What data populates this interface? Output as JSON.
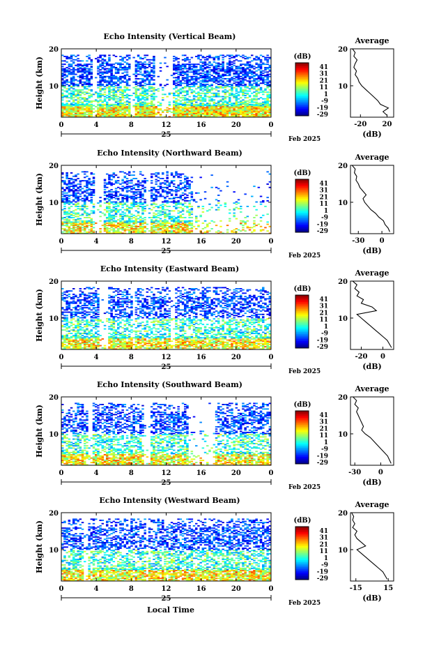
{
  "figure": {
    "xlabel_bottom": "Local Time",
    "date_label": "Feb 2025",
    "day_label": "25"
  },
  "chart_data": [
    {
      "type": "heatmap",
      "title": "Echo Intensity (Vertical Beam)",
      "xlabel": "Local Time",
      "ylabel": "Height (km)",
      "xticks": [
        "0",
        "4",
        "8",
        "12",
        "16",
        "20",
        "0"
      ],
      "xlim": [
        0,
        24
      ],
      "yticks": [
        "20",
        "10"
      ],
      "ylim": [
        1.5,
        20
      ],
      "colorbar": {
        "label": "(dB)",
        "ticks": [
          "41",
          "31",
          "21",
          "11",
          "1",
          "-9",
          "-19",
          "-29"
        ],
        "range": [
          -29,
          46
        ]
      },
      "gaps": [
        [
          3.6,
          4.1
        ],
        [
          8.0,
          8.4
        ],
        [
          10.6,
          12.8
        ]
      ],
      "avg_title": "Average",
      "avg_xlabel": "(dB)",
      "avg_xticks": [
        "-20",
        "20"
      ],
      "avg_xlim": [
        -35,
        30
      ],
      "avg_profile": {
        "height": [
          2,
          3,
          4,
          5,
          6,
          7,
          8,
          9,
          10,
          11,
          12,
          13,
          14,
          15,
          16,
          17,
          18,
          19,
          20
        ],
        "value": [
          20,
          14,
          22,
          10,
          6,
          0,
          -6,
          -12,
          -18,
          -22,
          -24,
          -28,
          -26,
          -30,
          -28,
          -25,
          -30,
          -28,
          -32
        ]
      }
    },
    {
      "type": "heatmap",
      "title": "Echo Intensity (Northward Beam)",
      "xlabel": "Local Time",
      "ylabel": "Height (km)",
      "xticks": [
        "0",
        "4",
        "8",
        "12",
        "16",
        "20",
        "0"
      ],
      "xlim": [
        0,
        24
      ],
      "yticks": [
        "20",
        "10"
      ],
      "ylim": [
        1.5,
        20
      ],
      "colorbar": {
        "label": "(dB)",
        "ticks": [
          "41",
          "31",
          "21",
          "11",
          "1",
          "-9",
          "-19",
          "-29"
        ],
        "range": [
          -29,
          46
        ]
      },
      "gaps": [
        [
          3.8,
          4.8
        ],
        [
          9.8,
          10.2
        ],
        [
          15.0,
          24.0
        ]
      ],
      "avg_title": "Average",
      "avg_xlabel": "(dB)",
      "avg_xticks": [
        "-30",
        "0"
      ],
      "avg_xlim": [
        -40,
        15
      ],
      "avg_profile": {
        "height": [
          2,
          3,
          4,
          5,
          6,
          7,
          8,
          9,
          10,
          11,
          12,
          13,
          14,
          15,
          16,
          17,
          18,
          19,
          20
        ],
        "value": [
          10,
          8,
          4,
          2,
          -4,
          -8,
          -14,
          -18,
          -22,
          -24,
          -20,
          -24,
          -28,
          -30,
          -33,
          -32,
          -35,
          -34,
          -38
        ]
      }
    },
    {
      "type": "heatmap",
      "title": "Echo Intensity (Eastward Beam)",
      "xlabel": "Local Time",
      "ylabel": "Height (km)",
      "xticks": [
        "0",
        "4",
        "8",
        "12",
        "16",
        "20",
        "0"
      ],
      "xlim": [
        0,
        24
      ],
      "yticks": [
        "20",
        "10"
      ],
      "ylim": [
        1.5,
        20
      ],
      "colorbar": {
        "label": "(dB)",
        "ticks": [
          "41",
          "31",
          "21",
          "11",
          "1",
          "-9",
          "-19",
          "-29"
        ],
        "range": [
          -29,
          46
        ]
      },
      "gaps": [
        [
          4.4,
          5.4
        ],
        [
          8.2,
          8.5
        ],
        [
          12.6,
          13.0
        ]
      ],
      "avg_title": "Average",
      "avg_xlabel": "(dB)",
      "avg_xticks": [
        "-20",
        "0"
      ],
      "avg_xlim": [
        -30,
        10
      ],
      "avg_profile": {
        "height": [
          2,
          3,
          4,
          5,
          6,
          7,
          8,
          9,
          10,
          11,
          12,
          13,
          14,
          15,
          16,
          17,
          18,
          19,
          20
        ],
        "value": [
          8,
          6,
          4,
          0,
          -4,
          -8,
          -12,
          -16,
          -20,
          -24,
          -6,
          -10,
          -20,
          -18,
          -24,
          -22,
          -26,
          -24,
          -28
        ]
      }
    },
    {
      "type": "heatmap",
      "title": "Echo Intensity (Southward Beam)",
      "xlabel": "Local Time",
      "ylabel": "Height (km)",
      "xticks": [
        "0",
        "4",
        "8",
        "12",
        "16",
        "20",
        "0"
      ],
      "xlim": [
        0,
        24
      ],
      "yticks": [
        "20",
        "10"
      ],
      "ylim": [
        1.5,
        20
      ],
      "colorbar": {
        "label": "(dB)",
        "ticks": [
          "41",
          "31",
          "21",
          "11",
          "1",
          "-9",
          "-19",
          "-29"
        ],
        "range": [
          -29,
          46
        ]
      },
      "gaps": [
        [
          3.0,
          3.6
        ],
        [
          9.5,
          10.2
        ],
        [
          14.5,
          17.5
        ]
      ],
      "avg_title": "Average",
      "avg_xlabel": "(dB)",
      "avg_xticks": [
        "-30",
        "0"
      ],
      "avg_xlim": [
        -35,
        15
      ],
      "avg_profile": {
        "height": [
          2,
          3,
          4,
          5,
          6,
          7,
          8,
          9,
          10,
          11,
          12,
          13,
          14,
          15,
          16,
          17,
          18,
          19,
          20
        ],
        "value": [
          12,
          10,
          8,
          4,
          0,
          -4,
          -8,
          -12,
          -18,
          -22,
          -20,
          -22,
          -24,
          -26,
          -28,
          -26,
          -30,
          -28,
          -32
        ]
      }
    },
    {
      "type": "heatmap",
      "title": "Echo Intensity (Westward Beam)",
      "xlabel": "Local Time",
      "ylabel": "Height (km)",
      "xticks": [
        "0",
        "4",
        "8",
        "12",
        "16",
        "20",
        "0"
      ],
      "xlim": [
        0,
        24
      ],
      "yticks": [
        "20",
        "10"
      ],
      "ylim": [
        1.5,
        20
      ],
      "colorbar": {
        "label": "(dB)",
        "ticks": [
          "41",
          "31",
          "21",
          "11",
          "1",
          "-9",
          "-19",
          "-29"
        ],
        "range": [
          -29,
          46
        ]
      },
      "gaps": [
        [
          2.6,
          3.0
        ],
        [
          9.6,
          10.0
        ]
      ],
      "avg_title": "Average",
      "avg_xlabel": "(dB)",
      "avg_xticks": [
        "-15",
        "15"
      ],
      "avg_xlim": [
        -20,
        20
      ],
      "avg_profile": {
        "height": [
          2,
          3,
          4,
          5,
          6,
          7,
          8,
          9,
          10,
          11,
          12,
          13,
          14,
          15,
          16,
          17,
          18,
          19,
          20
        ],
        "value": [
          14,
          12,
          10,
          6,
          2,
          -2,
          -6,
          -10,
          -14,
          -6,
          -10,
          -14,
          -16,
          -14,
          -18,
          -16,
          -18,
          -17,
          -19
        ]
      }
    }
  ]
}
